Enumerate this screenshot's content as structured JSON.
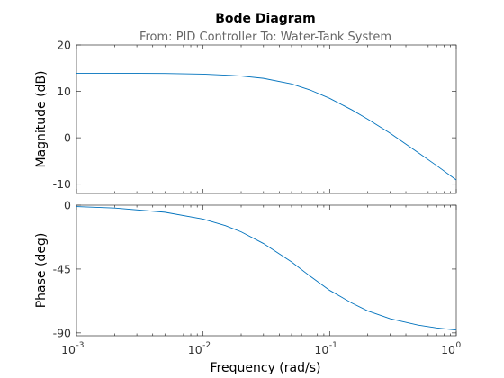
{
  "chart_data": {
    "type": "line",
    "title": "Bode Diagram",
    "subtitle": "From: PID Controller  To: Water-Tank System",
    "xlabel": "Frequency  (rad/s)",
    "xscale": "log",
    "xlim": [
      0.001,
      1
    ],
    "x_ticks": [
      {
        "base": "10",
        "exp": "-3"
      },
      {
        "base": "10",
        "exp": "-2"
      },
      {
        "base": "10",
        "exp": "-1"
      },
      {
        "base": "10",
        "exp": "0"
      }
    ],
    "line_color": "#0072BD",
    "grid": false,
    "panels": [
      {
        "ylabel": "Magnitude (dB)",
        "ylim": [
          -12,
          20
        ],
        "y_ticks": [
          "20",
          "10",
          "0",
          "-10"
        ],
        "y_tick_values": [
          20,
          10,
          0,
          -10
        ],
        "series": [
          {
            "x": [
              0.001,
              0.002,
              0.005,
              0.01,
              0.015,
              0.02,
              0.03,
              0.05,
              0.07,
              0.1,
              0.15,
              0.2,
              0.3,
              0.5,
              0.7,
              1.0
            ],
            "y": [
              13.9,
              13.9,
              13.85,
              13.7,
              13.5,
              13.3,
              12.8,
              11.6,
              10.3,
              8.5,
              6.0,
              4.0,
              1.0,
              -3.2,
              -6.0,
              -9.1
            ]
          }
        ]
      },
      {
        "ylabel": "Phase (deg)",
        "ylim": [
          -92,
          0
        ],
        "y_ticks": [
          "0",
          "-45",
          "-90"
        ],
        "y_tick_values": [
          0,
          -45,
          -90
        ],
        "series": [
          {
            "x": [
              0.001,
              0.002,
              0.005,
              0.01,
              0.015,
              0.02,
              0.03,
              0.05,
              0.07,
              0.1,
              0.15,
              0.2,
              0.3,
              0.5,
              0.7,
              1.0
            ],
            "y": [
              -1.0,
              -2.0,
              -5.0,
              -9.8,
              -14.4,
              -18.8,
              -27.0,
              -40.0,
              -50.0,
              -60.0,
              -69.0,
              -74.5,
              -80.0,
              -84.5,
              -86.5,
              -88.0
            ]
          }
        ]
      }
    ]
  }
}
